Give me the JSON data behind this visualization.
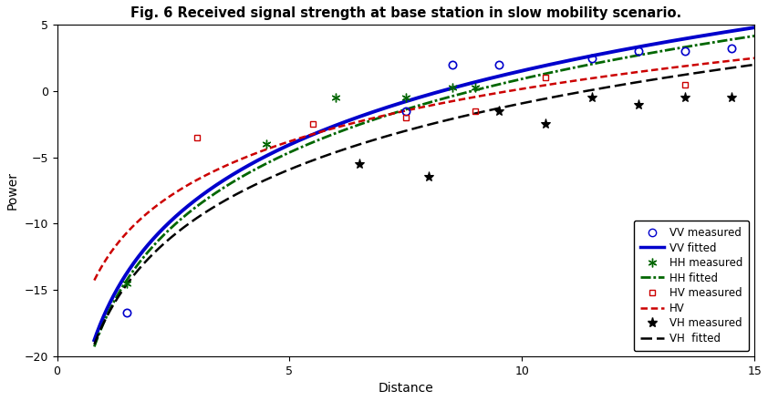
{
  "title": "Fig. 6 Received signal strength at base station in slow mobility scenario.",
  "xlabel": "Distance",
  "ylabel": "Power",
  "xlim": [
    0,
    15
  ],
  "ylim": [
    -20,
    5
  ],
  "xticks": [
    0,
    5,
    10,
    15
  ],
  "yticks": [
    -20,
    -15,
    -10,
    -5,
    0,
    5
  ],
  "vv_measured_x": [
    1.5,
    7.5,
    8.5,
    9.5,
    11.5,
    12.5,
    13.5,
    14.5
  ],
  "vv_measured_y": [
    -16.7,
    -1.5,
    2.0,
    2.0,
    2.5,
    3.0,
    3.0,
    3.2
  ],
  "hh_measured_x": [
    1.5,
    4.5,
    6.0,
    7.5,
    8.5,
    9.0
  ],
  "hh_measured_y": [
    -14.5,
    -4.0,
    -0.5,
    -0.5,
    0.3,
    0.3
  ],
  "hv_measured_x": [
    3.0,
    5.5,
    7.5,
    9.0,
    10.5,
    13.5
  ],
  "hv_measured_y": [
    -3.5,
    -2.5,
    -2.0,
    -1.5,
    1.0,
    0.5
  ],
  "vh_measured_x": [
    6.5,
    8.0,
    9.5,
    10.5,
    11.5,
    12.5,
    13.5,
    14.5
  ],
  "vh_measured_y": [
    -5.5,
    -6.5,
    -1.5,
    -2.5,
    -0.5,
    -1.0,
    -0.5,
    -0.5
  ],
  "fit_x_start": 0.8,
  "fit_x_end": 15.0,
  "vv_fit_a": 8.05,
  "vv_fit_c": -17.0,
  "hh_fit_a": 8.0,
  "hh_fit_c": -17.5,
  "hv_fit_a": 5.72,
  "hv_fit_c": -13.0,
  "vh_fit_a": 7.2,
  "vh_fit_c": -17.5,
  "vv_color": "#0000CC",
  "hh_color": "#006600",
  "hv_color": "#CC0000",
  "vh_color": "#000000",
  "bg_color": "#FFFFFF",
  "legend_fontsize": 8.5,
  "title_fontsize": 10.5,
  "axis_fontsize": 10
}
